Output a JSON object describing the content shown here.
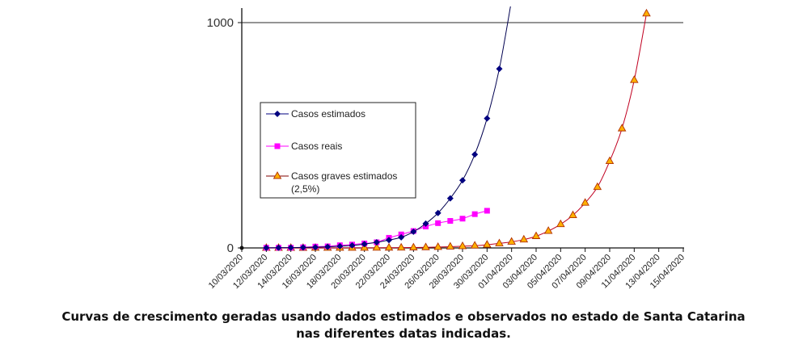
{
  "chart_data": {
    "type": "line",
    "title": "",
    "xlabel": "",
    "ylabel": "",
    "ylim": [
      0,
      1000
    ],
    "yticks": [
      "0",
      "1000"
    ],
    "grid": "horizontal line at 1000",
    "legend_position": "center-left",
    "x_tick_labels": [
      "10/03/2020",
      "12/03/2020",
      "14/03/2020",
      "16/03/2020",
      "18/03/2020",
      "20/03/2020",
      "22/03/2020",
      "24/03/2020",
      "26/03/2020",
      "28/03/2020",
      "30/03/2020",
      "01/04/2020",
      "03/04/2020",
      "05/04/2020",
      "07/04/2020",
      "09/04/2020",
      "11/04/2020",
      "13/04/2020",
      "15/04/2020"
    ],
    "x_start": "10/03/2020",
    "x_end_day_index": 36,
    "series": [
      {
        "name": "Casos estimados",
        "color": "#000080",
        "marker": "diamond",
        "start_day_index": 2,
        "values": [
          0.5,
          1,
          1.5,
          2.2,
          3.3,
          5,
          7.5,
          11,
          17,
          25,
          35,
          47,
          72,
          108,
          155,
          220,
          300,
          415,
          575,
          795,
          1100
        ]
      },
      {
        "name": "Casos reais",
        "color": "#ff00ff",
        "marker": "square",
        "start_day_index": 2,
        "values": [
          1,
          1,
          1,
          3,
          6,
          7,
          12,
          15,
          20,
          25,
          45,
          60,
          75,
          95,
          110,
          120,
          130,
          150,
          165
        ]
      },
      {
        "name": "Casos graves estimados (2,5%)",
        "legend_lines": [
          "Casos graves estimados",
          "(2,5%)"
        ],
        "color": "#cc0000",
        "marker_fill": "#ffb000",
        "marker": "triangle",
        "start_day_index": 2,
        "values": [
          0,
          0,
          0,
          0,
          0.1,
          0.1,
          0.2,
          0.3,
          0.4,
          0.6,
          0.9,
          1.2,
          1.8,
          2.7,
          3.9,
          5.5,
          7.5,
          10,
          14,
          20,
          27,
          37,
          52,
          75,
          105,
          145,
          200,
          270,
          385,
          530,
          745,
          1040
        ]
      }
    ]
  },
  "caption": {
    "line1": "Curvas de crescimento geradas usando dados estimados e observados no estado de Santa Catarina",
    "line2": "nas diferentes datas indicadas."
  }
}
